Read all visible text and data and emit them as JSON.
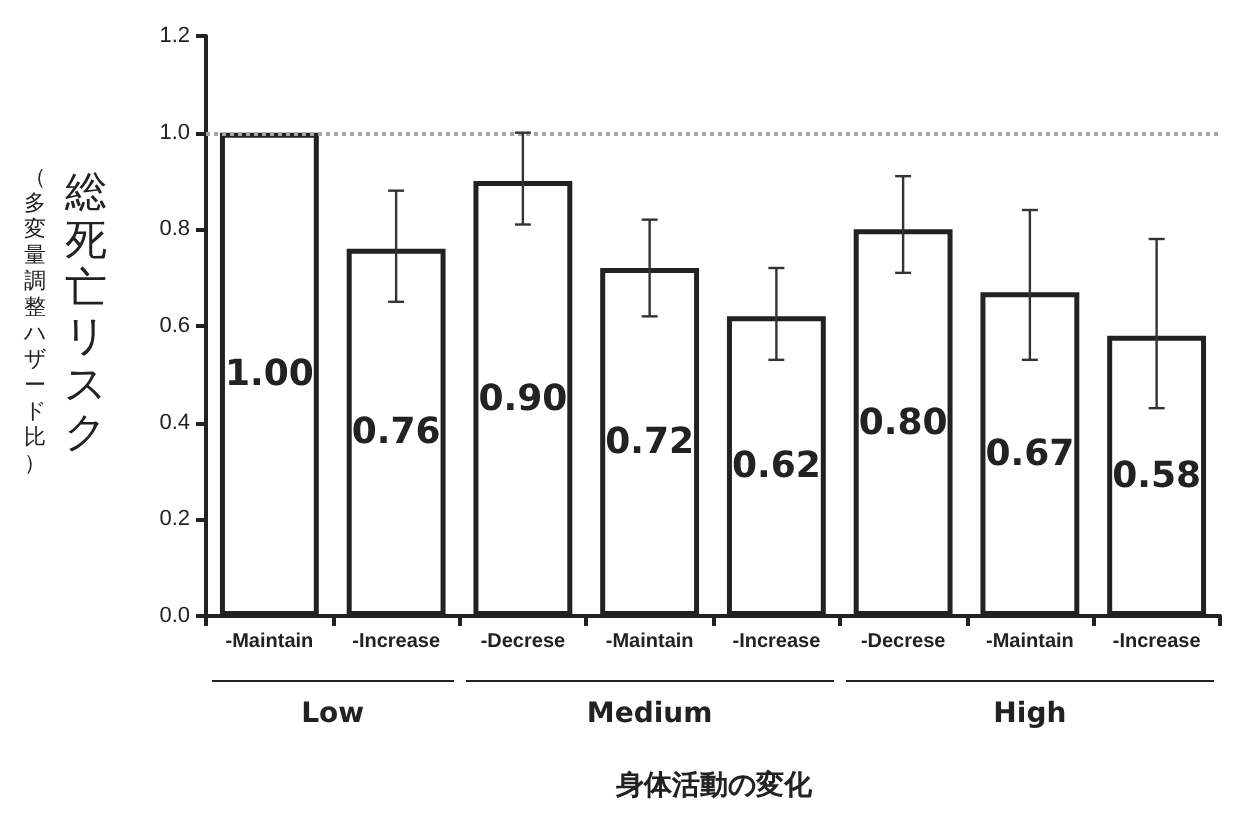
{
  "chart_data": {
    "type": "bar",
    "ylabel": "総死亡リスク",
    "subtitle": "（多変量調整ハザード比）",
    "xlabel": "身体活動の変化",
    "categories": [
      "-Maintain",
      "-Increase",
      "-Decrese",
      "-Maintain",
      "-Increase",
      "-Decrese",
      "-Maintain",
      "-Increase"
    ],
    "series": [
      {
        "color": "#ffffff",
        "values": [
          1.0,
          0.76,
          0.9,
          0.72,
          0.62,
          0.8,
          0.67,
          0.58
        ],
        "value_labels": [
          "1.00",
          "0.76",
          "0.90",
          "0.72",
          "0.62",
          "0.80",
          "0.67",
          "0.58"
        ],
        "errors": [
          null,
          [
            0.65,
            0.88
          ],
          [
            0.81,
            1.0
          ],
          [
            0.62,
            0.82
          ],
          [
            0.53,
            0.72
          ],
          [
            0.71,
            0.91
          ],
          [
            0.53,
            0.84
          ],
          [
            0.43,
            0.78
          ]
        ]
      }
    ],
    "annotations": [
      "Low",
      "Medium",
      "High"
    ],
    "ylim": [
      0,
      1.2
    ],
    "yticks": [
      {
        "value": 0,
        "label": "0.0"
      },
      {
        "value": 0.2,
        "label": "0.2"
      },
      {
        "value": 0.4,
        "label": "0.4"
      },
      {
        "value": 0.6,
        "label": "0.6"
      },
      {
        "value": 0.8,
        "label": "0.8"
      },
      {
        "value": 1,
        "label": "1.0"
      },
      {
        "value": 1.2,
        "label": "1.2"
      }
    ],
    "ref_lines": [
      {
        "axis": "y",
        "value": 1.0,
        "color": "#a6a6a6",
        "line_style": "dotted"
      }
    ],
    "grid": false
  }
}
